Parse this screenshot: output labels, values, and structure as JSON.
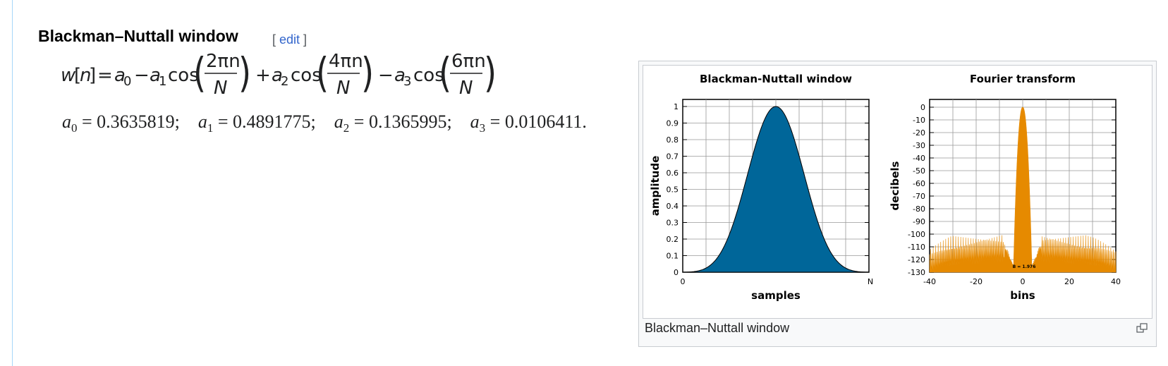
{
  "section": {
    "title": "Blackman–Nuttall window",
    "edit_open": "[ ",
    "edit_label": "edit",
    "edit_close": " ]"
  },
  "formula": {
    "lhs": "w[n] = a",
    "text": "w[n] = a0 − a1 cos(2πn/N) + a2 cos(4πn/N) − a3 cos(6πn/N)",
    "num1": "2πn",
    "num2": "4πn",
    "num3": "6πn",
    "den": "N"
  },
  "coefficients": [
    {
      "name": "a",
      "sub": "0",
      "value": "0.3635819;"
    },
    {
      "name": "a",
      "sub": "1",
      "value": "0.4891775;"
    },
    {
      "name": "a",
      "sub": "2",
      "value": "0.1365995;"
    },
    {
      "name": "a",
      "sub": "3",
      "value": "0.0106411."
    }
  ],
  "figure": {
    "caption": "Blackman–Nuttall window",
    "magnify_icon": "magnify-icon"
  },
  "chart_data": [
    {
      "type": "area",
      "title": "Blackman-Nuttall window",
      "xlabel": "samples",
      "ylabel": "amplitude",
      "x_tick_labels": [
        "0",
        "N"
      ],
      "y_tick_labels": [
        "0",
        "0.1",
        "0.2",
        "0.3",
        "0.4",
        "0.5",
        "0.6",
        "0.7",
        "0.8",
        "0.9",
        "1"
      ],
      "ylim": [
        0,
        1
      ],
      "grid": true,
      "color": "#006699",
      "coefficients": [
        0.3635819,
        0.4891775,
        0.1365995,
        0.0106411
      ]
    },
    {
      "type": "area",
      "title": "Fourier transform",
      "xlabel": "bins",
      "ylabel": "decibels",
      "x_tick_labels": [
        "-40",
        "-20",
        "0",
        "20",
        "40"
      ],
      "y_tick_labels": [
        "0",
        "-10",
        "-20",
        "-30",
        "-40",
        "-50",
        "-60",
        "-70",
        "-80",
        "-90",
        "-100",
        "-110",
        "-120",
        "-130"
      ],
      "xlim": [
        -40,
        40
      ],
      "ylim": [
        -130,
        0
      ],
      "grid": true,
      "color": "#e68a00",
      "annotation": "B = 1.976"
    }
  ]
}
